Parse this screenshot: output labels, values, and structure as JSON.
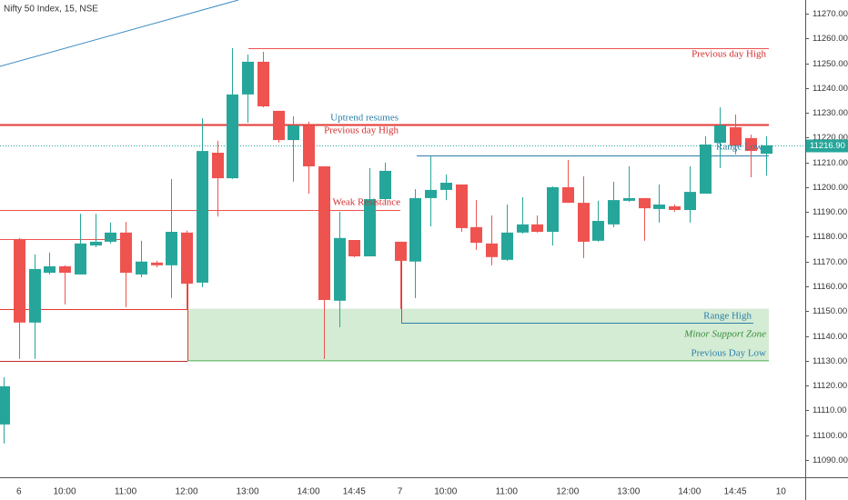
{
  "chart_data": {
    "type": "candlestick",
    "title": "Nifty 50 Index, 15, NSE",
    "categories": [
      null,
      "6",
      null,
      null,
      "10:00",
      null,
      null,
      null,
      "11:00",
      null,
      null,
      null,
      "12:00",
      null,
      null,
      null,
      "13:00",
      null,
      null,
      null,
      "14:00",
      null,
      null,
      "14:45",
      null,
      null,
      "7",
      null,
      null,
      "10:00",
      null,
      null,
      null,
      "11:00",
      null,
      null,
      null,
      "12:00",
      null,
      null,
      null,
      "13:00",
      null,
      null,
      null,
      "14:00",
      null,
      null,
      "14:45",
      null,
      null,
      "10"
    ],
    "open": [
      11104.3,
      11179.1,
      11145.4,
      11165.5,
      11168.1,
      11164.8,
      11176.5,
      11178,
      11181.7,
      11164.8,
      11169.6,
      11168.5,
      11181.7,
      11161.5,
      11213.9,
      11203.6,
      11237.4,
      11250.6,
      11230.8,
      11219,
      11224.9,
      11208.4,
      11154.2,
      11178.7,
      11172.1,
      11195.2,
      11178,
      11170,
      11195.6,
      11198.9,
      11201.1,
      11183.9,
      11177.3,
      11170.7,
      11181.7,
      11185,
      11182,
      11200,
      11193.7,
      11178.4,
      11185,
      11194.5,
      11195.6,
      11191.2,
      11192.3,
      11190.8,
      11197.4,
      11217.9,
      11224.2,
      11219.8,
      11213.5,
      null
    ],
    "high": [
      11123.4,
      11179.5,
      11172.9,
      11173.6,
      11168.5,
      11189.3,
      11189.3,
      11185.7,
      11186,
      11178.4,
      11170.3,
      11203.3,
      11182.5,
      11227.8,
      11218.7,
      11256.1,
      11253.5,
      11254.6,
      11230.8,
      11228.6,
      11226.4,
      11208.4,
      11190.1,
      11178.7,
      11207.7,
      11209.9,
      11178,
      11199.2,
      11212.4,
      11205.1,
      11201.1,
      11194.8,
      11188.6,
      11193,
      11196,
      11188.6,
      11200.3,
      11211,
      11204.4,
      11194.5,
      11202.2,
      11208.4,
      11195.6,
      11201.1,
      11193,
      11208.4,
      11220.5,
      11232.2,
      11229.3,
      11221.2,
      11220.5,
      null
    ],
    "low": [
      11096.6,
      11130.7,
      11130.7,
      11164.8,
      11152.7,
      11164.8,
      11175.8,
      11177.3,
      11151.6,
      11163.7,
      11167.7,
      11155.3,
      11150.9,
      11159.7,
      11188.2,
      11203.3,
      11226,
      11232.2,
      11218,
      11202.2,
      11197.4,
      11130.7,
      11143.5,
      11171.8,
      11172.1,
      11194.5,
      11150.9,
      11155.3,
      11184.2,
      11194.8,
      11182,
      11174.7,
      11168.5,
      11170.3,
      11181.3,
      11181.7,
      11176.5,
      11193.7,
      11171.4,
      11178,
      11183.9,
      11194.1,
      11178.4,
      11185.7,
      11190.1,
      11185.7,
      11197.4,
      11207.7,
      11213.2,
      11204,
      11204.7,
      null
    ],
    "close": [
      11119.7,
      11145.4,
      11167,
      11168.1,
      11165.5,
      11177.3,
      11178,
      11181.7,
      11165.5,
      11170,
      11168.5,
      11182,
      11161.1,
      11214.6,
      11203.6,
      11237.4,
      11250.6,
      11232.6,
      11219,
      11224.9,
      11208.4,
      11154.5,
      11179.5,
      11172.1,
      11195.2,
      11206.6,
      11170.3,
      11195.6,
      11198.9,
      11201.8,
      11183.5,
      11177.6,
      11171.8,
      11181.7,
      11185,
      11182,
      11200,
      11193.7,
      11178,
      11186.4,
      11194.8,
      11195.6,
      11191.5,
      11193,
      11190.8,
      11198.1,
      11217.2,
      11224.9,
      11216.8,
      11214.6,
      11216.9,
      null
    ],
    "up_color": "#26a69a",
    "down_color": "#ef5350",
    "ylim": [
      11083,
      11275.5
    ],
    "yticks": [
      {
        "value": 11090,
        "label": "11090.00"
      },
      {
        "value": 11100,
        "label": "11100.00"
      },
      {
        "value": 11110,
        "label": "11110.00"
      },
      {
        "value": 11120,
        "label": "11120.00"
      },
      {
        "value": 11130,
        "label": "11130.00"
      },
      {
        "value": 11140,
        "label": "11140.00"
      },
      {
        "value": 11150,
        "label": "11150.00"
      },
      {
        "value": 11160,
        "label": "11160.00"
      },
      {
        "value": 11170,
        "label": "11170.00"
      },
      {
        "value": 11180,
        "label": "11180.00"
      },
      {
        "value": 11190,
        "label": "11190.00"
      },
      {
        "value": 11200,
        "label": "11200.00"
      },
      {
        "value": 11210,
        "label": "11210.00"
      },
      {
        "value": 11220,
        "label": "11220.00"
      },
      {
        "value": 11230,
        "label": "11230.00"
      },
      {
        "value": 11240,
        "label": "11240.00"
      },
      {
        "value": 11250,
        "label": "11250.00"
      },
      {
        "value": 11260,
        "label": "11260.00"
      },
      {
        "value": 11270,
        "label": "11270.00"
      }
    ],
    "last_price": {
      "value": 11216.9,
      "label": "11216.90",
      "color": "#26a69a"
    },
    "levels": [
      {
        "value": 11256.1,
        "color": "#ef5350"
      },
      {
        "value": 11225.3,
        "color": "#e53935"
      },
      {
        "value": 11212.8,
        "color": "#2e7fa8"
      },
      {
        "value": 11190.8,
        "color": "#ef5350"
      },
      {
        "value": 11179,
        "color": "#ef5350"
      },
      {
        "value": 11151,
        "color": "#e53935"
      },
      {
        "value": 11130,
        "color": "#c62828"
      },
      {
        "value": 11145.4,
        "color": "#2e7fa8"
      }
    ],
    "zone": {
      "top": 11151,
      "bottom": 11130,
      "color": "#d4ecd4",
      "border": "#4caf50"
    },
    "annotations": [
      {
        "text": "Previous day High",
        "color": "#d32f2f"
      },
      {
        "text": "Uptrend resumes",
        "color": "#2e7fa8"
      },
      {
        "text": "Previous day High",
        "color": "#d32f2f"
      },
      {
        "text": "Weak Resistance",
        "color": "#d32f2f"
      },
      {
        "text": "Range Low",
        "color": "#2e7fa8"
      },
      {
        "text": "Range High",
        "color": "#2e7fa8"
      },
      {
        "text": "Minor Support Zone",
        "color": "#388e3c"
      },
      {
        "text": "Previous Day Low",
        "color": "#2e7fa8"
      }
    ]
  }
}
